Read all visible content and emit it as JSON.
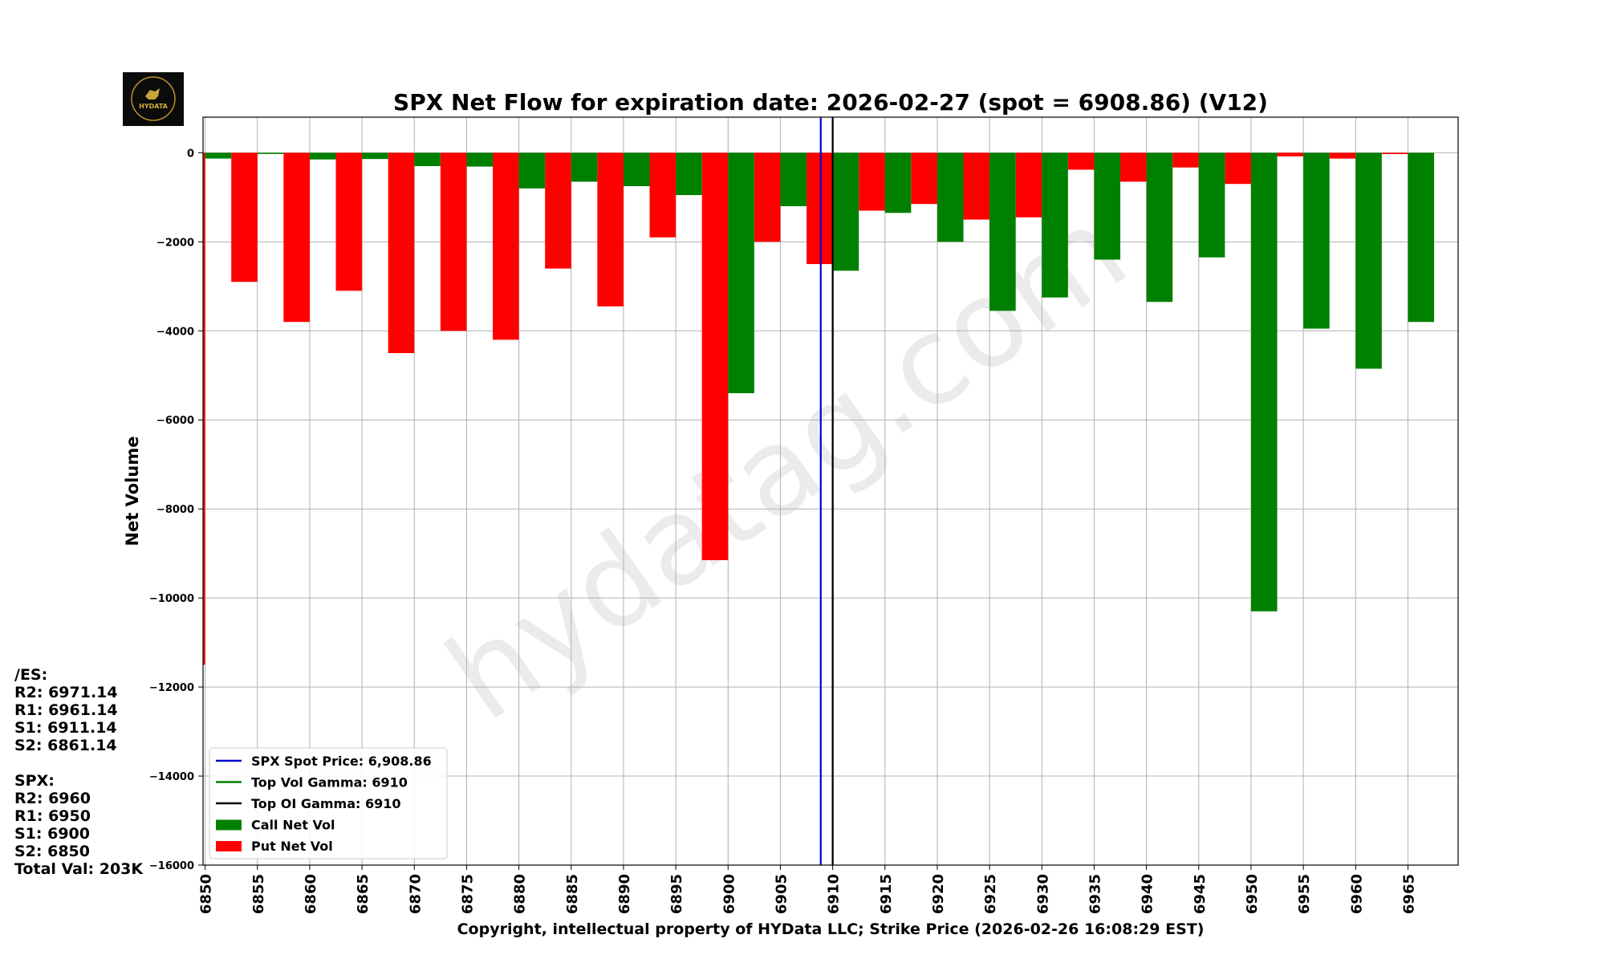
{
  "logo": {
    "text": "HYDATA"
  },
  "watermark": "hydatag.com",
  "side_panel": {
    "es_header": "/ES:",
    "es_lines": [
      "R2: 6971.14",
      "R1: 6961.14",
      "S1: 6911.14",
      "S2: 6861.14"
    ],
    "spx_header": "SPX:",
    "spx_lines": [
      "R2: 6960",
      "R1: 6950",
      "S1: 6900",
      "S2: 6850"
    ],
    "total": "Total Val: 203K"
  },
  "colors": {
    "call": "#008000",
    "put": "#ff0000",
    "spot": "#0000cc",
    "oi_gamma": "#000000",
    "vol_gamma": "#008000"
  },
  "chart_data": {
    "type": "bar",
    "title": "SPX Net Flow for expiration date: 2026-02-27 (spot = 6908.86) (V12)",
    "xlabel": "Copyright, intellectual property of HYData LLC; Strike Price (2026-02-26 16:08:29 EST)",
    "ylabel": "Net Volume",
    "ylim": [
      -16000,
      800
    ],
    "xlim": [
      6849.8,
      6969.8
    ],
    "yticks": [
      0,
      -2000,
      -4000,
      -6000,
      -8000,
      -10000,
      -12000,
      -14000,
      -16000
    ],
    "ytick_labels": [
      "0",
      "−2000",
      "−4000",
      "−6000",
      "−8000",
      "−10000",
      "−12000",
      "−14000",
      "−16000"
    ],
    "xticks": [
      6850,
      6855,
      6860,
      6865,
      6870,
      6875,
      6880,
      6885,
      6890,
      6895,
      6900,
      6905,
      6910,
      6915,
      6920,
      6925,
      6930,
      6935,
      6940,
      6945,
      6950,
      6955,
      6960,
      6965
    ],
    "grid": true,
    "legend_position": "lower-left",
    "spot_price": 6908.86,
    "top_oi_gamma": 6910,
    "top_vol_gamma": 6910,
    "legend": [
      {
        "label": "SPX Spot Price: 6,908.86",
        "kind": "line",
        "color": "#0000cc"
      },
      {
        "label": "Top Vol Gamma: 6910",
        "kind": "line",
        "color": "#008000"
      },
      {
        "label": "Top OI Gamma: 6910",
        "kind": "line",
        "color": "#000000"
      },
      {
        "label": "Call Net Vol",
        "kind": "patch",
        "color": "#008000"
      },
      {
        "label": "Put Net Vol",
        "kind": "patch",
        "color": "#ff0000"
      }
    ],
    "series": [
      {
        "name": "Call Net Vol",
        "x": [
          6850,
          6855,
          6860,
          6865,
          6870,
          6875,
          6880,
          6885,
          6890,
          6895,
          6900,
          6905,
          6910,
          6915,
          6920,
          6925,
          6930,
          6935,
          6940,
          6945,
          6950,
          6955,
          6960,
          6965
        ],
        "values": [
          -130,
          -20,
          -150,
          -140,
          -300,
          -310,
          -800,
          -650,
          -750,
          -950,
          -5400,
          -1200,
          -2650,
          -1350,
          -2000,
          -3550,
          -3250,
          -2400,
          -3350,
          -2350,
          -10300,
          -3950,
          -4850,
          -3800
        ]
      },
      {
        "name": "Put Net Vol",
        "x": [
          6850,
          6855,
          6860,
          6865,
          6870,
          6875,
          6880,
          6885,
          6890,
          6895,
          6900,
          6905,
          6910,
          6915,
          6920,
          6925,
          6930,
          6935,
          6940,
          6945,
          6950,
          6955,
          6960,
          6965
        ],
        "values": [
          -11500,
          -2900,
          -3800,
          -3100,
          -4500,
          -4000,
          -4200,
          -2600,
          -3450,
          -1900,
          -9150,
          -2000,
          -2500,
          -1300,
          -1150,
          -1500,
          -1450,
          -380,
          -650,
          -330,
          -700,
          -80,
          -130,
          -30
        ]
      }
    ]
  }
}
